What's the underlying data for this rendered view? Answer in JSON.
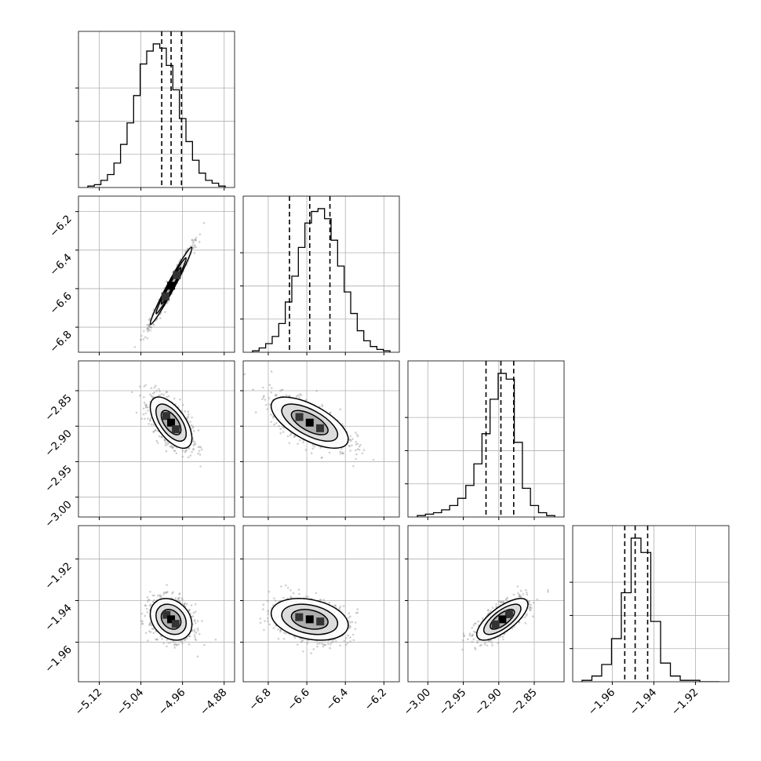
{
  "figure": {
    "kind": "corner-plot"
  },
  "colors": {
    "line": "#000000",
    "grid": "#b0b0b0",
    "scatter": "#9a9a9a"
  },
  "chart_data": {
    "type": "corner",
    "parameters": [
      {
        "range": [
          -5.16,
          -4.86
        ],
        "ticks": [
          "−5.12",
          "−5.04",
          "−4.96",
          "−4.88"
        ],
        "tick_values": [
          -5.12,
          -5.04,
          -4.96,
          -4.88
        ],
        "quantiles": [
          -5.0,
          -4.982,
          -4.962
        ],
        "mean": -4.982,
        "std": 0.02
      },
      {
        "range": [
          -6.93,
          -6.12
        ],
        "ticks": [
          "−6.8",
          "−6.6",
          "−6.4",
          "−6.2"
        ],
        "tick_values": [
          -6.8,
          -6.6,
          -6.4,
          -6.2
        ],
        "quantiles": [
          -6.69,
          -6.585,
          -6.48
        ],
        "mean": -6.585,
        "std": 0.1
      },
      {
        "range": [
          -3.028,
          -2.808
        ],
        "ticks": [
          "−3.00",
          "−2.95",
          "−2.90",
          "−2.85"
        ],
        "tick_values": [
          -3.0,
          -2.95,
          -2.9,
          -2.85
        ],
        "quantiles": [
          -2.918,
          -2.897,
          -2.879
        ],
        "mean": -2.895,
        "std": 0.018
      },
      {
        "range": [
          -1.979,
          -1.904
        ],
        "ticks": [
          "−1.96",
          "−1.94",
          "−1.92"
        ],
        "tick_values": [
          -1.96,
          -1.94,
          -1.92
        ],
        "quantiles": [
          -1.954,
          -1.949,
          -1.943
        ],
        "mean": -1.949,
        "std": 0.005
      }
    ],
    "correlations": [
      [
        1,
        0.98,
        -0.6,
        -0.25
      ],
      [
        0.98,
        1,
        -0.65,
        -0.28
      ],
      [
        -0.6,
        -0.65,
        1,
        0.72
      ],
      [
        -0.25,
        -0.28,
        0.72,
        1
      ]
    ],
    "histograms": [
      [
        0.01,
        0.02,
        0.05,
        0.09,
        0.17,
        0.3,
        0.45,
        0.64,
        0.86,
        0.95,
        1.0,
        0.97,
        0.85,
        0.68,
        0.48,
        0.32,
        0.19,
        0.1,
        0.05,
        0.03,
        0.01
      ],
      [
        0.01,
        0.03,
        0.06,
        0.11,
        0.2,
        0.35,
        0.53,
        0.73,
        0.9,
        0.98,
        1.0,
        0.93,
        0.78,
        0.6,
        0.42,
        0.27,
        0.15,
        0.08,
        0.04,
        0.02,
        0.01
      ],
      [
        0.01,
        0.02,
        0.03,
        0.05,
        0.08,
        0.13,
        0.22,
        0.37,
        0.58,
        0.82,
        1.0,
        0.96,
        0.52,
        0.2,
        0.08,
        0.03,
        0.01
      ],
      [
        0.01,
        0.04,
        0.12,
        0.3,
        0.62,
        1.0,
        0.9,
        0.42,
        0.13,
        0.04,
        0.01,
        0.01,
        0.0,
        0.0
      ]
    ]
  }
}
